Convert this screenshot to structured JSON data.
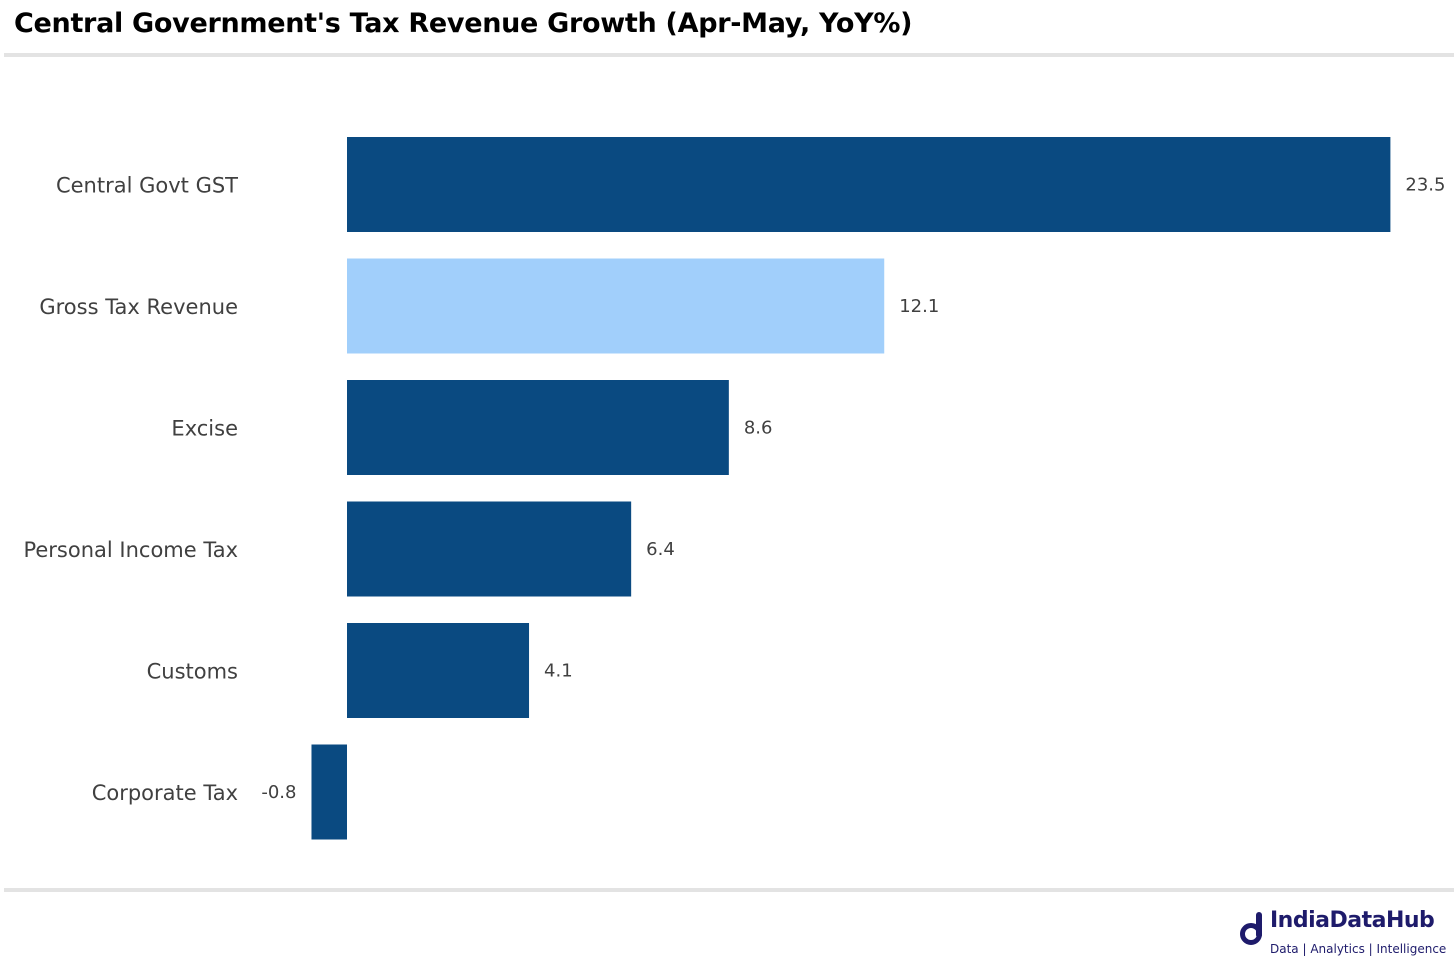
{
  "colors": {
    "bar_default": "#0a4a81",
    "bar_highlight": "#a1cffb",
    "label_text": "#404040",
    "brand": "#1e1b6b"
  },
  "chart_data": {
    "type": "bar",
    "orientation": "horizontal",
    "title": "Central Government's Tax Revenue Growth (Apr-May, YoY%)",
    "categories": [
      "Central Govt GST",
      "Gross Tax Revenue",
      "Excise",
      "Personal Income Tax",
      "Customs",
      "Corporate Tax"
    ],
    "values": [
      23.5,
      12.1,
      8.6,
      6.4,
      4.1,
      -0.8
    ],
    "value_labels": [
      "23.5",
      "12.1",
      "8.6",
      "6.4",
      "4.1",
      "-0.8"
    ],
    "highlight": "Gross Tax Revenue",
    "xlim": [
      -0.8,
      23.5
    ],
    "grid": false,
    "legend": "none",
    "xlabel": "",
    "ylabel": ""
  },
  "branding": {
    "name": "IndiaDataHub",
    "tagline": "Data | Analytics | Intelligence",
    "icon": "indiadatahub-logo-icon"
  }
}
